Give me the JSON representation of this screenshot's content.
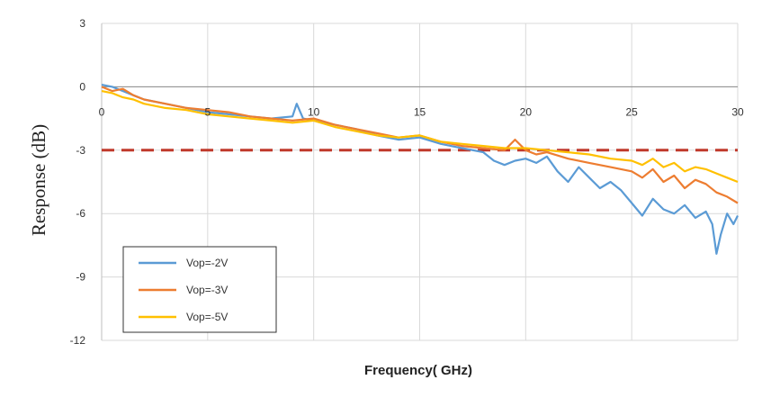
{
  "chart_data": {
    "type": "line",
    "title": "",
    "xlabel": "Frequency( GHz)",
    "ylabel": "Response (dB)",
    "xlim": [
      0,
      30
    ],
    "ylim": [
      -12,
      3
    ],
    "x_ticks": [
      "0",
      "5",
      "10",
      "15",
      "20",
      "25",
      "30"
    ],
    "y_ticks": [
      "3",
      "0",
      "-3",
      "-6",
      "-9",
      "-12"
    ],
    "grid": true,
    "legend_position": "bottom-left",
    "reference_line": {
      "y": -3,
      "color": "#c0392b",
      "style": "dashed"
    },
    "series": [
      {
        "name": "Vop=-2V",
        "color": "#5b9bd5",
        "x": [
          0,
          0.5,
          1,
          1.5,
          2,
          3,
          4,
          5,
          6,
          7,
          8,
          9,
          9.2,
          9.5,
          10,
          11,
          12,
          13,
          14,
          15,
          16,
          17,
          18,
          18.5,
          19,
          19.5,
          20,
          20.5,
          21,
          21.5,
          22,
          22.5,
          23,
          23.5,
          24,
          24.5,
          25,
          25.5,
          26,
          26.5,
          27,
          27.5,
          28,
          28.5,
          28.8,
          29,
          29.2,
          29.5,
          29.8,
          30
        ],
        "y": [
          0.1,
          0,
          -0.2,
          -0.4,
          -0.6,
          -0.8,
          -1.0,
          -1.2,
          -1.3,
          -1.4,
          -1.5,
          -1.4,
          -0.8,
          -1.5,
          -1.6,
          -1.8,
          -2.0,
          -2.3,
          -2.5,
          -2.4,
          -2.7,
          -2.9,
          -3.1,
          -3.5,
          -3.7,
          -3.5,
          -3.4,
          -3.6,
          -3.3,
          -4.0,
          -4.5,
          -3.8,
          -4.3,
          -4.8,
          -4.5,
          -4.9,
          -5.5,
          -6.1,
          -5.3,
          -5.8,
          -6.0,
          -5.6,
          -6.2,
          -5.9,
          -6.5,
          -7.9,
          -7.0,
          -6.0,
          -6.5,
          -6.1
        ]
      },
      {
        "name": "Vop=-3V",
        "color": "#ed7d31",
        "x": [
          0,
          0.5,
          1,
          1.5,
          2,
          3,
          4,
          5,
          6,
          7,
          8,
          9,
          10,
          11,
          12,
          13,
          14,
          15,
          16,
          17,
          18,
          19,
          19.5,
          20,
          20.5,
          21,
          22,
          23,
          24,
          25,
          25.5,
          26,
          26.5,
          27,
          27.5,
          28,
          28.5,
          29,
          29.5,
          30
        ],
        "y": [
          0,
          -0.2,
          -0.1,
          -0.4,
          -0.6,
          -0.8,
          -1.0,
          -1.1,
          -1.2,
          -1.4,
          -1.5,
          -1.6,
          -1.5,
          -1.8,
          -2.0,
          -2.2,
          -2.4,
          -2.3,
          -2.6,
          -2.8,
          -2.9,
          -3.0,
          -2.5,
          -3.0,
          -3.2,
          -3.1,
          -3.4,
          -3.6,
          -3.8,
          -4.0,
          -4.3,
          -3.9,
          -4.5,
          -4.2,
          -4.8,
          -4.4,
          -4.6,
          -5.0,
          -5.2,
          -5.5
        ]
      },
      {
        "name": "Vop=-5V",
        "color": "#ffc000",
        "x": [
          0,
          0.5,
          1,
          1.5,
          2,
          3,
          4,
          5,
          6,
          7,
          8,
          9,
          10,
          11,
          12,
          13,
          14,
          15,
          16,
          17,
          18,
          19,
          20,
          21,
          22,
          23,
          24,
          25,
          25.5,
          26,
          26.5,
          27,
          27.5,
          28,
          28.5,
          29,
          29.5,
          30
        ],
        "y": [
          -0.2,
          -0.3,
          -0.5,
          -0.6,
          -0.8,
          -1.0,
          -1.1,
          -1.3,
          -1.4,
          -1.5,
          -1.6,
          -1.7,
          -1.6,
          -1.9,
          -2.1,
          -2.3,
          -2.4,
          -2.3,
          -2.6,
          -2.7,
          -2.8,
          -2.9,
          -2.9,
          -3.0,
          -3.1,
          -3.2,
          -3.4,
          -3.5,
          -3.7,
          -3.4,
          -3.8,
          -3.6,
          -4.0,
          -3.8,
          -3.9,
          -4.1,
          -4.3,
          -4.5
        ]
      }
    ]
  }
}
